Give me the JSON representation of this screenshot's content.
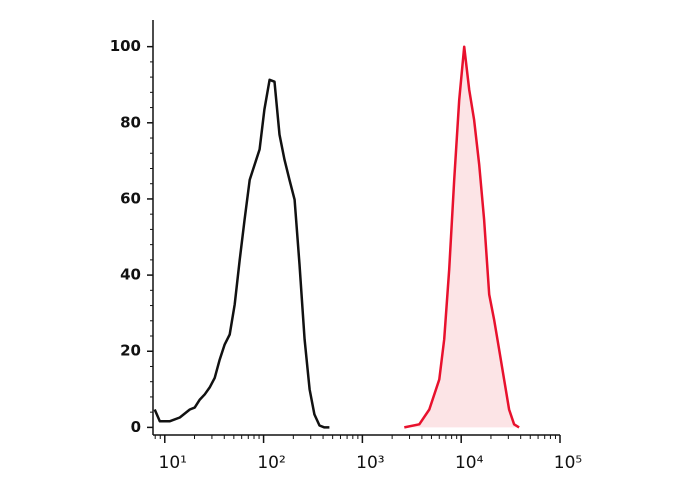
{
  "chart_data": {
    "type": "histogram-line",
    "xlog": true,
    "xlim": [
      7.6,
      100000
    ],
    "ylim": [
      -2,
      107
    ],
    "xticks": [
      {
        "value": 10,
        "label": "10¹"
      },
      {
        "value": 100,
        "label": "10²"
      },
      {
        "value": 1000,
        "label": "10³"
      },
      {
        "value": 10000,
        "label": "10⁴"
      },
      {
        "value": 100000,
        "label": "10⁵"
      }
    ],
    "yticks": [
      0,
      20,
      40,
      60,
      80,
      100
    ],
    "series": [
      {
        "color": "#111111",
        "x": [
          7.9,
          8.9,
          11.2,
          14.2,
          17.9,
          20.1,
          22.6,
          25.4,
          28.5,
          32,
          36,
          40.4,
          45.4,
          51,
          57.3,
          64.3,
          72.3,
          81.1,
          91.2,
          102,
          115,
          129,
          145,
          163,
          183,
          206,
          231,
          260,
          292,
          327,
          368,
          413,
          464
        ],
        "values": [
          4.7,
          1.6,
          1.6,
          2.6,
          4.7,
          5.2,
          7.3,
          8.7,
          10.5,
          13,
          17.8,
          21.8,
          24.4,
          32.3,
          44,
          54.6,
          65,
          69,
          73,
          83.5,
          91.3,
          90.8,
          76.9,
          70.3,
          65,
          59.8,
          42.8,
          23.1,
          10,
          3.4,
          0.5,
          0,
          0
        ]
      },
      {
        "color": "#e8112d",
        "fill": "#fce4e6",
        "x": [
          2655,
          3767,
          4753,
          5998,
          6730,
          7568,
          8492,
          9550,
          10715,
          12050,
          13520,
          15200,
          17060,
          19190,
          21530,
          24210,
          27160,
          30550,
          34280,
          38550
        ],
        "values": [
          0,
          0.8,
          4.7,
          12.6,
          23.1,
          41.5,
          65,
          86,
          100,
          88.7,
          80.8,
          69,
          54.6,
          34.9,
          28.3,
          20.5,
          12.6,
          4.7,
          0.8,
          0
        ]
      }
    ]
  }
}
